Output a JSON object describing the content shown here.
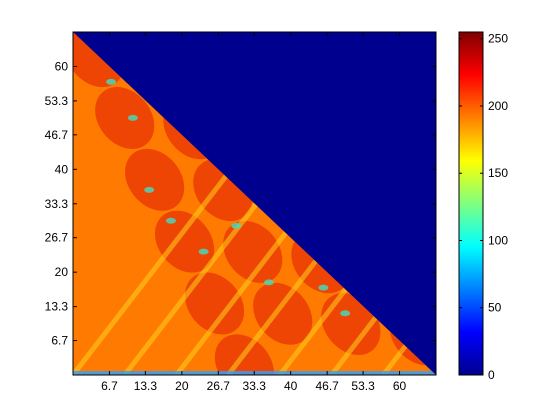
{
  "chart_data": {
    "type": "heatmap",
    "title": "",
    "xlabel": "",
    "ylabel": "",
    "xlim": [
      0,
      66.7
    ],
    "ylim": [
      0,
      66.7
    ],
    "x_ticks": [
      {
        "value": 6.7,
        "label": "6.7"
      },
      {
        "value": 13.3,
        "label": "13.3"
      },
      {
        "value": 20,
        "label": "20"
      },
      {
        "value": 26.7,
        "label": "26.7"
      },
      {
        "value": 33.3,
        "label": "33.3"
      },
      {
        "value": 40,
        "label": "40"
      },
      {
        "value": 46.7,
        "label": "46.7"
      },
      {
        "value": 53.3,
        "label": "53.3"
      },
      {
        "value": 60,
        "label": "60"
      }
    ],
    "y_ticks": [
      {
        "value": 6.7,
        "label": "6.7"
      },
      {
        "value": 13.3,
        "label": "13.3"
      },
      {
        "value": 20,
        "label": "20"
      },
      {
        "value": 26.7,
        "label": "26.7"
      },
      {
        "value": 33.3,
        "label": "33.3"
      },
      {
        "value": 40,
        "label": "40"
      },
      {
        "value": 46.7,
        "label": "46.7"
      },
      {
        "value": 53.3,
        "label": "53.3"
      },
      {
        "value": 60,
        "label": "60"
      }
    ],
    "colorbar": {
      "colormap": "jet",
      "min": 0,
      "max": 255,
      "ticks": [
        {
          "value": 0,
          "label": "0"
        },
        {
          "value": 50,
          "label": "50"
        },
        {
          "value": 100,
          "label": "100"
        },
        {
          "value": 150,
          "label": "150"
        },
        {
          "value": 200,
          "label": "200"
        },
        {
          "value": 250,
          "label": "250"
        }
      ]
    },
    "structure": "lower-left triangle filled (y <= xmax - x), upper-right triangle at value 0",
    "typical_value_range": [
      150,
      240
    ],
    "pattern": "diagonal bands of high values (~230) separated by lower streaks (~110-170)",
    "grid": false,
    "legend": "none"
  }
}
